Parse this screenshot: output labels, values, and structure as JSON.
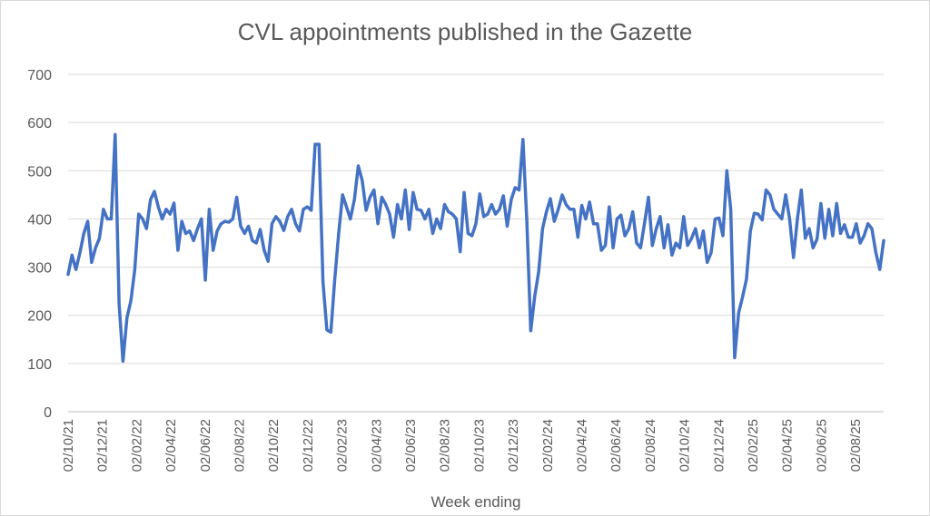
{
  "chart_data": {
    "type": "line",
    "title": "CVL appointments published in the Gazette",
    "xlabel": "Week ending",
    "ylabel": "",
    "ylim": [
      0,
      700
    ],
    "yticks": [
      0,
      100,
      200,
      300,
      400,
      500,
      600,
      700
    ],
    "xticks": [
      "02/10/21",
      "02/12/21",
      "02/02/22",
      "02/04/22",
      "02/06/22",
      "02/08/22",
      "02/10/22",
      "02/12/22",
      "02/02/23",
      "02/04/23",
      "02/06/23",
      "02/08/23",
      "02/10/23",
      "02/12/23",
      "02/02/24",
      "02/04/24",
      "02/06/24",
      "02/08/24",
      "02/10/24",
      "02/12/24",
      "02/02/25",
      "02/04/25",
      "02/06/25",
      "02/08/25"
    ],
    "x_start": "2021-10-02",
    "x_interval_days": 7,
    "grid": true,
    "legend": "none",
    "line_color": "#4472c4",
    "series": [
      {
        "name": "",
        "values": [
          285,
          325,
          295,
          330,
          370,
          395,
          310,
          340,
          360,
          420,
          400,
          400,
          575,
          225,
          105,
          195,
          230,
          295,
          410,
          400,
          380,
          440,
          457,
          425,
          400,
          420,
          410,
          433,
          335,
          395,
          370,
          375,
          355,
          380,
          400,
          273,
          420,
          335,
          375,
          390,
          395,
          393,
          400,
          445,
          385,
          370,
          385,
          355,
          350,
          378,
          335,
          312,
          390,
          405,
          395,
          376,
          405,
          420,
          390,
          375,
          420,
          425,
          418,
          555,
          555,
          270,
          170,
          165,
          275,
          370,
          450,
          425,
          400,
          440,
          510,
          480,
          418,
          445,
          460,
          390,
          445,
          430,
          410,
          362,
          430,
          400,
          460,
          378,
          455,
          420,
          418,
          400,
          420,
          370,
          400,
          380,
          430,
          415,
          410,
          400,
          332,
          455,
          370,
          365,
          390,
          452,
          405,
          410,
          430,
          410,
          420,
          448,
          385,
          440,
          465,
          460,
          565,
          395,
          168,
          240,
          290,
          380,
          415,
          442,
          395,
          420,
          450,
          430,
          420,
          420,
          362,
          428,
          400,
          435,
          390,
          390,
          335,
          345,
          425,
          340,
          400,
          408,
          365,
          380,
          415,
          350,
          340,
          390,
          445,
          345,
          380,
          405,
          340,
          388,
          325,
          350,
          340,
          405,
          345,
          360,
          380,
          340,
          375,
          310,
          330,
          400,
          402,
          365,
          500,
          420,
          112,
          205,
          238,
          275,
          375,
          412,
          410,
          398,
          460,
          450,
          420,
          410,
          400,
          450,
          400,
          320,
          400,
          460,
          360,
          380,
          340,
          358,
          432,
          360,
          420,
          365,
          432,
          370,
          388,
          362,
          362,
          390,
          350,
          365,
          390,
          380,
          330,
          295,
          355
        ]
      }
    ]
  }
}
